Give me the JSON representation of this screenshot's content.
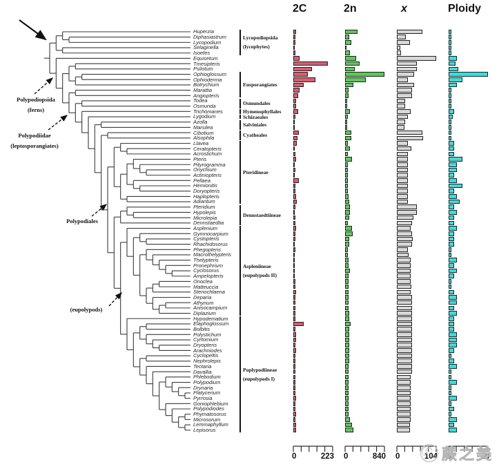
{
  "chart_data": {
    "type": "bar",
    "orientation": "horizontal",
    "grid": false,
    "legend": "none",
    "row_alignment": "rows aligned with phylogenetic tree tips",
    "categories": [
      "Huperzia",
      "Diphasiastrum",
      "Lycopodium",
      "Selaginella",
      "Isoetes",
      "Equisetum",
      "Tmesipteris",
      "Psilotum",
      "Ophioglossum",
      "Ophioderma",
      "Botrychium",
      "Marattia",
      "Angiopteris",
      "Todea",
      "Osmunda",
      "Trichomanes",
      "Lygodium",
      "Azolla",
      "Marsilea",
      "Cibotium",
      "Alsophila",
      "Llavea",
      "Ceratopteris",
      "Acrostichum",
      "Pteris",
      "Pityrogramma",
      "Onychium",
      "Actiniopteris",
      "Pellaea",
      "Hemionitis",
      "Doryopteris",
      "Haplopteris",
      "Adiantum",
      "Pteridium",
      "Hypolepis",
      "Microlepia",
      "Dennstaedtia",
      "Asplenium",
      "Gymnocarpium",
      "Cystopteris",
      "Rhachidosorus",
      "Phegopteris",
      "Macrothelypteris",
      "Thelypteris",
      "Pronephrium",
      "Cyclosorus",
      "Ampelopteris",
      "Onoclea",
      "Matteuccia",
      "Stenochlaena",
      "Deparia",
      "Athyrium",
      "Anisocampium",
      "Diplazium",
      "Hypodematium",
      "Elaphoglossum",
      "Bolbitis",
      "Polystichum",
      "Cyrtomium",
      "Dryopteris",
      "Arachniodes",
      "Cyclopeltis",
      "Nephrolepis",
      "Tectaria",
      "Davallia",
      "Phlebodium",
      "Polypodium",
      "Drynaria",
      "Platycerium",
      "Pyrrosia",
      "Goniophlebium",
      "Polypodiodes",
      "Phymatosorus",
      "Microsorum",
      "Lemmaphyllum",
      "Lepisorus"
    ],
    "series": [
      {
        "name": "2C",
        "color": "#DB5C6E",
        "axis_min": 0,
        "axis_max": 223,
        "values": [
          16,
          11,
          11,
          4,
          13,
          36,
          196,
          105,
          82,
          124,
          59,
          37,
          26,
          16,
          15,
          27,
          13,
          6,
          7,
          30,
          25,
          20,
          8,
          12,
          14,
          9,
          10,
          8,
          31,
          10,
          12,
          14,
          18,
          12,
          9,
          12,
          10,
          14,
          12,
          10,
          8,
          10,
          8,
          9,
          8,
          9,
          8,
          10,
          12,
          14,
          10,
          12,
          10,
          12,
          13,
          57,
          12,
          16,
          14,
          13,
          14,
          11,
          10,
          12,
          11,
          13,
          12,
          10,
          12,
          14,
          13,
          12,
          14,
          13,
          15,
          17
        ]
      },
      {
        "name": "2n",
        "color": "#5CC85C",
        "axis_min": 0,
        "axis_max": 840,
        "values": [
          272,
          92,
          136,
          27,
          110,
          240,
          310,
          208,
          840,
          440,
          184,
          78,
          80,
          44,
          44,
          108,
          60,
          44,
          40,
          136,
          138,
          58,
          110,
          60,
          140,
          60,
          60,
          60,
          58,
          60,
          60,
          72,
          90,
          104,
          100,
          86,
          66,
          144,
          160,
          84,
          82,
          60,
          62,
          72,
          72,
          108,
          72,
          74,
          78,
          74,
          80,
          80,
          80,
          82,
          82,
          120,
          82,
          82,
          82,
          82,
          82,
          82,
          82,
          80,
          80,
          74,
          74,
          72,
          72,
          72,
          72,
          72,
          72,
          96,
          144,
          180
        ]
      },
      {
        "name": "x",
        "color": "#D8D8D8",
        "axis_min": 0,
        "axis_max": 104,
        "values": [
          68,
          23,
          34,
          10,
          11,
          104,
          52,
          52,
          45,
          30,
          45,
          40,
          40,
          22,
          22,
          36,
          30,
          22,
          20,
          68,
          69,
          29,
          39,
          30,
          29,
          30,
          29,
          29,
          29,
          30,
          29,
          30,
          30,
          52,
          52,
          43,
          40,
          36,
          40,
          42,
          41,
          30,
          31,
          36,
          36,
          36,
          36,
          37,
          39,
          37,
          40,
          40,
          40,
          41,
          41,
          41,
          41,
          41,
          41,
          41,
          41,
          41,
          41,
          40,
          40,
          37,
          37,
          36,
          36,
          36,
          36,
          36,
          36,
          36,
          35,
          35
        ]
      },
      {
        "name": "Ploidy",
        "color": "#3EDBDB",
        "axis_min": 0,
        "axis_max": 28,
        "values": [
          2,
          2,
          2,
          2,
          2,
          6,
          5,
          7,
          28,
          10,
          6,
          2,
          2,
          2,
          2,
          4,
          3,
          2,
          2,
          2,
          2,
          4,
          4,
          4,
          10,
          6,
          6,
          4,
          6,
          10,
          4,
          6,
          8,
          4,
          6,
          4,
          4,
          6,
          4,
          4,
          4,
          2,
          2,
          6,
          4,
          6,
          4,
          2,
          2,
          4,
          6,
          6,
          4,
          6,
          4,
          4,
          4,
          6,
          6,
          6,
          4,
          2,
          4,
          6,
          2,
          2,
          6,
          2,
          2,
          6,
          2,
          4,
          2,
          6,
          4,
          6
        ]
      }
    ]
  },
  "tree": {
    "newick": "(((Huperzia,(Diphasiastrum,Lycopodium)),(Selaginella,Isoetes)),(Equisetum,(((Tmesipteris,Psilotum),((Ophioglossum,Ophioderma),Botrychium)),((Marattia,Angiopteris),((Todea,Osmunda),(Trichomanes,(Lygodium,((Azolla,Marsilea),((Cibotium,Alsophila),(((Llavea,(Ceratopteris,Acrostichum)),(((Pteris,(Pityrogramma,(Onychium,Actiniopteris))),(Pellaea,(Hemionitis,Doryopteris))),(Haplopteris,Adiantum))),(((Pteridium,(Hypolepis,Microlepia)),Dennstaedtia),((Asplenium,((Gymnocarpium,(Cystopteris,Rhachidosorus)),((Phegopteris,(Macrothelypteris,(Thelypteris,(Pronephrium,(Cyclosorus,Ampelopteris))))),(((Onoclea,Matteuccia),Stenochlaena),(Deparia,((Athyrium,Anisocampium),Diplazium)))))),(Hypodematium,(((Elaphoglossum,Bolbitis),(Polystichum,(Cyrtomium,(Dryopteris,Arachniodes)))),((Cyclopeltis,Nephrolepis),(Tectaria,(Davallia,((Phlebodium,(Polypodium,(Drynaria,(Platycerium,Pyrrosia)))),(Goniophlebium,(Polypodiodes,((Phymatosorus,Microsorum),(Lemmaphyllum,Lepisorus))))))))))))))))))))"
  },
  "clades": [
    {
      "lines": [
        "Lycopodiopsida",
        "(lycophytes)"
      ],
      "from": 0,
      "to": 4
    },
    {
      "lines": [
        "Eusporangiates"
      ],
      "from": 8,
      "to": 12
    },
    {
      "lines": [
        "Osmundales"
      ],
      "from": 13,
      "to": 14
    },
    {
      "lines": [
        "Hymenophyllales"
      ],
      "from": 15,
      "to": 15
    },
    {
      "lines": [
        "Schizaeales"
      ],
      "from": 16,
      "to": 16
    },
    {
      "lines": [
        "Salviniales"
      ],
      "from": 17,
      "to": 18
    },
    {
      "lines": [
        "Cyatheales"
      ],
      "from": 19,
      "to": 20
    },
    {
      "lines": [
        "Pteridineae"
      ],
      "from": 21,
      "to": 32
    },
    {
      "lines": [
        "Dennstaedtiineae"
      ],
      "from": 33,
      "to": 36
    },
    {
      "lines": [
        "Aspleniineae",
        "(eupolypods II)"
      ],
      "from": 37,
      "to": 53
    },
    {
      "lines": [
        "Poplypodiineae",
        "(eupolypods I)"
      ],
      "from": 54,
      "to": 75
    }
  ],
  "annotations": {
    "labels": [
      {
        "lines": [
          "Polypodiopsida",
          "(ferns)"
        ]
      },
      {
        "lines": [
          "Polypodiidae",
          "(leptosporangiates)"
        ]
      },
      {
        "lines": [
          "Polypodiales"
        ]
      },
      {
        "lines": [
          "(eupolypods)"
        ]
      }
    ]
  },
  "watermark": {
    "text": "蕨之美"
  }
}
